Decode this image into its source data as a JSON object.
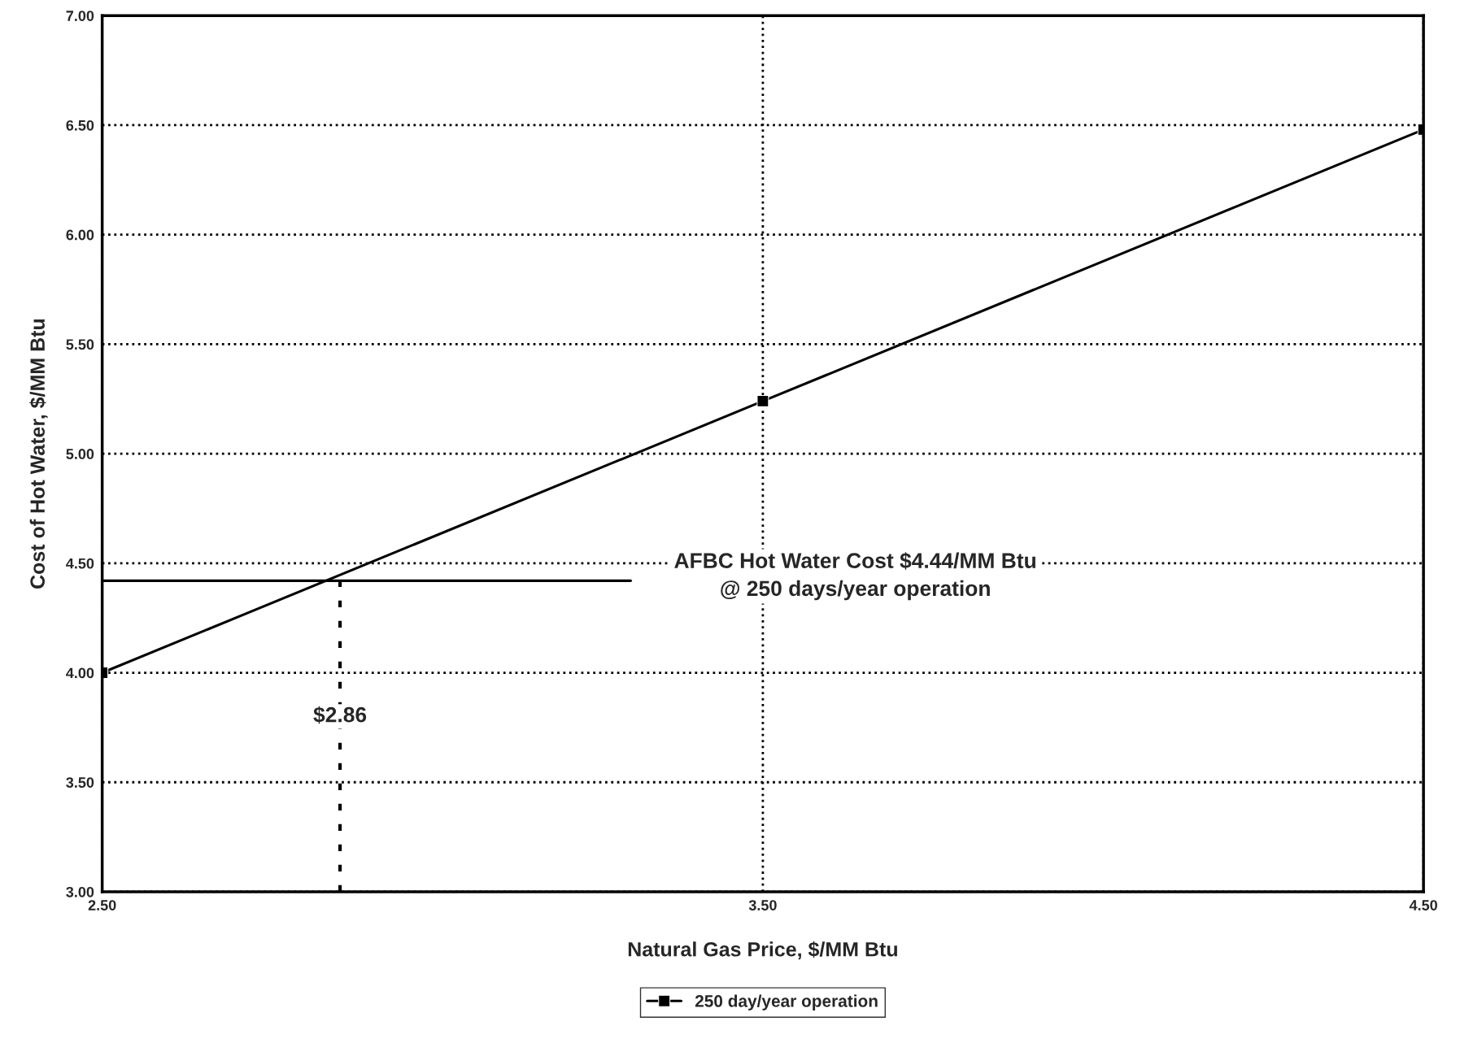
{
  "chart_data": {
    "type": "line",
    "xlabel": "Natural Gas Price, $/MM Btu",
    "ylabel": "Cost of Hot Water, $/MM Btu",
    "xlim": [
      2.5,
      4.5
    ],
    "xticks": [
      {
        "value": 2.5,
        "label": "2.50"
      },
      {
        "value": 3.5,
        "label": "3.50"
      },
      {
        "value": 4.5,
        "label": "4.50"
      }
    ],
    "ylim": [
      3.0,
      7.0
    ],
    "yticks": [
      {
        "value": 3.0,
        "label": "3.00"
      },
      {
        "value": 3.5,
        "label": "3.50"
      },
      {
        "value": 4.0,
        "label": "4.00"
      },
      {
        "value": 4.5,
        "label": "4.50"
      },
      {
        "value": 5.0,
        "label": "5.00"
      },
      {
        "value": 5.5,
        "label": "5.50"
      },
      {
        "value": 6.0,
        "label": "6.00"
      },
      {
        "value": 6.5,
        "label": "6.50"
      },
      {
        "value": 7.0,
        "label": "7.00"
      }
    ],
    "grid": true,
    "legend": "bottom",
    "series": [
      {
        "name": "250 day/year operation",
        "color": "#000000",
        "x": [
          2.5,
          3.5,
          4.5
        ],
        "values": [
          4.0,
          5.24,
          6.48
        ],
        "marker": "square",
        "line_style": "solid"
      },
      {
        "type": "line",
        "color": "#000000",
        "x": [
          2.5,
          3.3
        ],
        "values": [
          4.42,
          4.42
        ],
        "marker": "none",
        "line_style": "solid"
      },
      {
        "type": "line",
        "color": "#000000",
        "x": [
          2.86,
          2.86
        ],
        "values": [
          3.0,
          4.42
        ],
        "marker": "none",
        "line_style": "dashed"
      }
    ],
    "annotations": [
      "AFBC Hot Water Cost $4.44/MM Btu\n@ 250 days/year operation",
      {
        "text": "$2.86",
        "x": 2.86,
        "y": 3.8
      }
    ]
  }
}
